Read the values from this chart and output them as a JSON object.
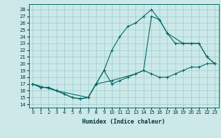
{
  "title": "",
  "xlabel": "Humidex (Indice chaleur)",
  "bg_color": "#cce8e8",
  "line_color": "#006666",
  "grid_color": "#99cccc",
  "xlim": [
    -0.5,
    23.5
  ],
  "ylim": [
    13.5,
    28.8
  ],
  "yticks": [
    14,
    15,
    16,
    17,
    18,
    19,
    20,
    21,
    22,
    23,
    24,
    25,
    26,
    27,
    28
  ],
  "xticks": [
    0,
    1,
    2,
    3,
    4,
    5,
    6,
    7,
    8,
    9,
    10,
    11,
    12,
    13,
    14,
    15,
    16,
    17,
    18,
    19,
    20,
    21,
    22,
    23
  ],
  "line1_x": [
    0,
    1,
    2,
    3,
    4,
    5,
    6,
    7,
    8,
    9,
    10,
    11,
    12,
    13,
    14,
    15,
    16,
    17,
    18,
    19,
    20,
    21,
    22,
    23
  ],
  "line1_y": [
    17,
    16.5,
    16.5,
    16,
    15.5,
    15,
    14.8,
    15,
    17,
    19,
    22,
    24,
    25.5,
    26,
    27,
    28,
    26.5,
    24.5,
    23,
    23,
    23,
    23,
    21,
    20
  ],
  "line2_x": [
    0,
    1,
    2,
    3,
    4,
    5,
    6,
    7,
    8,
    9,
    10,
    11,
    12,
    13,
    14,
    15,
    16,
    17,
    18,
    19,
    20,
    21,
    22,
    23
  ],
  "line2_y": [
    17,
    16.5,
    16.5,
    16,
    15.5,
    15,
    14.8,
    15,
    17,
    19,
    17,
    17.5,
    18,
    18.5,
    19,
    18.5,
    18,
    18,
    18.5,
    19,
    19.5,
    19.5,
    20,
    20
  ],
  "line3_x": [
    0,
    3,
    7,
    8,
    10,
    13,
    14,
    15,
    16,
    17,
    19,
    20,
    21,
    22,
    23
  ],
  "line3_y": [
    17,
    16,
    15,
    17,
    17.5,
    18.5,
    19,
    27,
    26.5,
    24.5,
    23,
    23,
    23,
    21,
    20
  ]
}
